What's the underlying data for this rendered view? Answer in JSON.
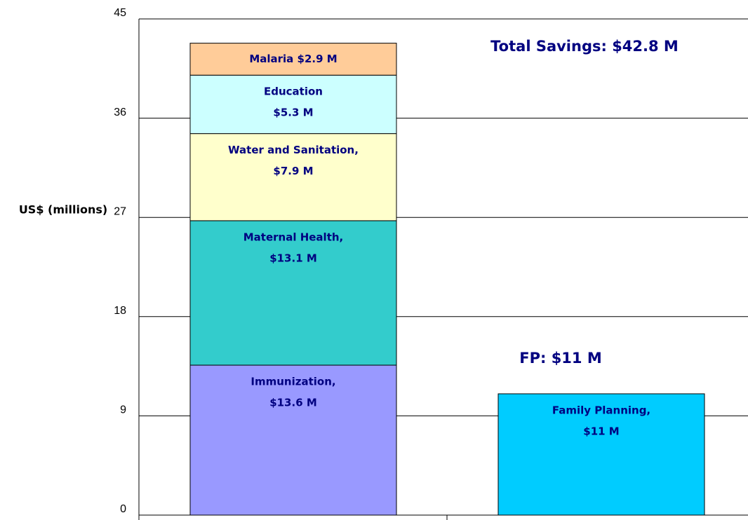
{
  "chart_data": {
    "type": "stacked_bar",
    "ylabel": "US$ (millions)",
    "categories": [
      null,
      null
    ],
    "series": [
      {
        "color": "#9999ff",
        "values": [
          13.6,
          null
        ],
        "value_labels": [
          [
            "Immunization,",
            "$13.6 M"
          ],
          null
        ]
      },
      {
        "color": "#33cccc",
        "values": [
          13.1,
          null
        ],
        "value_labels": [
          [
            "Maternal Health,",
            "$13.1 M"
          ],
          null
        ]
      },
      {
        "color": "#ffffcc",
        "values": [
          7.9,
          null
        ],
        "value_labels": [
          [
            "Water and Sanitation,",
            "$7.9 M"
          ],
          null
        ]
      },
      {
        "color": "#ccffff",
        "values": [
          5.3,
          null
        ],
        "value_labels": [
          [
            "Education",
            "$5.3 M"
          ],
          null
        ]
      },
      {
        "color": "#ffcc99",
        "values": [
          2.9,
          null
        ],
        "value_labels": [
          [
            "Malaria $2.9 M"
          ],
          null
        ]
      },
      {
        "color": "#00ccff",
        "values": [
          null,
          11
        ],
        "value_labels": [
          null,
          [
            "Family Planning,",
            "$11 M"
          ]
        ]
      }
    ],
    "annotations": [
      "Total Savings: $42.8 M",
      "FP: $11 M"
    ],
    "ylim": [
      0,
      45
    ],
    "yticks": [
      0,
      9,
      18,
      27,
      36,
      45
    ],
    "grid": true
  }
}
